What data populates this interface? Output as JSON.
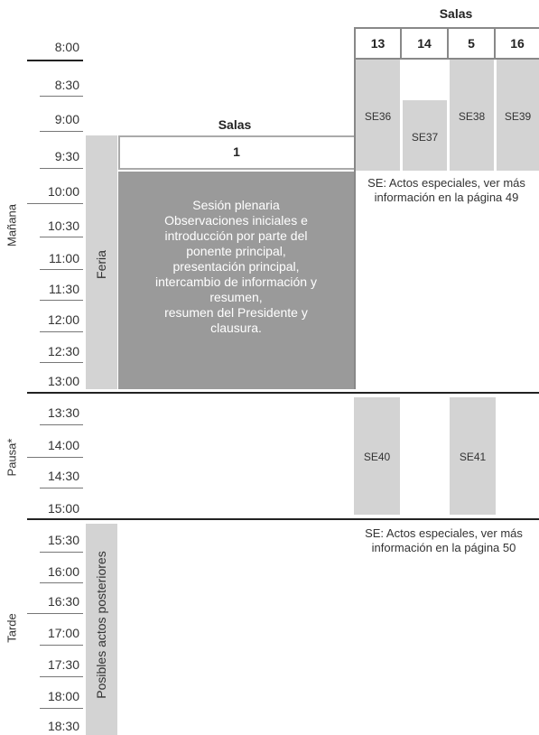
{
  "salas_top": "Salas",
  "rooms_top": [
    "13",
    "14",
    "5",
    "16"
  ],
  "salas_main": "Salas",
  "room_main": "1",
  "times": [
    "8:00",
    "8:30",
    "9:00",
    "9:30",
    "10:00",
    "10:30",
    "11:00",
    "11:30",
    "12:00",
    "12:30",
    "13:00",
    "13:30",
    "14:00",
    "14:30",
    "15:00",
    "15:30",
    "16:00",
    "16:30",
    "17:00",
    "17:30",
    "18:00",
    "18:30"
  ],
  "periods": {
    "morning": "Mañana",
    "pause": "Pausa*",
    "afternoon": "Tarde"
  },
  "feria": "Feria",
  "posteriores": "Posibles actos posteriores",
  "plenary_lines": [
    "Sesión plenaria",
    "Observaciones iniciales e",
    "introducción por parte del",
    "ponente principal,",
    "presentación principal,",
    "intercambio de información y",
    "resumen,",
    "resumen del Presidente y",
    "clausura."
  ],
  "special_events": {
    "se36": "SE36",
    "se37": "SE37",
    "se38": "SE38",
    "se39": "SE39",
    "se40": "SE40",
    "se41": "SE41"
  },
  "note1": [
    "SE: Actos especiales, ver más",
    "información en la página 49"
  ],
  "note2": [
    "SE: Actos especiales, ver más",
    "información en la página 50"
  ]
}
